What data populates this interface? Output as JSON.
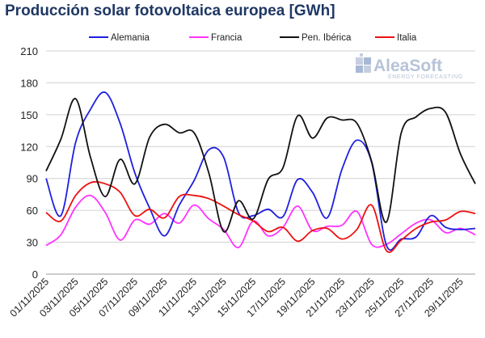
{
  "chart_data": {
    "type": "line",
    "title": "Producción solar fotovoltaica europea [GWh]",
    "ylim": [
      0,
      210
    ],
    "yticks": [
      0,
      30,
      60,
      90,
      120,
      150,
      180,
      210
    ],
    "grid": "horizontal",
    "legend_position": "top",
    "x": [
      "01/11/2025",
      "02/11/2025",
      "03/11/2025",
      "04/11/2025",
      "05/11/2025",
      "06/11/2025",
      "07/11/2025",
      "08/11/2025",
      "09/11/2025",
      "10/11/2025",
      "11/11/2025",
      "12/11/2025",
      "13/11/2025",
      "14/11/2025",
      "15/11/2025",
      "16/11/2025",
      "17/11/2025",
      "18/11/2025",
      "19/11/2025",
      "20/11/2025",
      "21/11/2025",
      "22/11/2025",
      "23/11/2025",
      "24/11/2025",
      "25/11/2025",
      "26/11/2025",
      "27/11/2025",
      "28/11/2025",
      "29/11/2025",
      "30/11/2025"
    ],
    "xtick_labels": [
      "01/11/2025",
      "03/11/2025",
      "05/11/2025",
      "07/11/2025",
      "09/11/2025",
      "11/11/2025",
      "13/11/2025",
      "15/11/2025",
      "17/11/2025",
      "19/11/2025",
      "21/11/2025",
      "23/11/2025",
      "25/11/2025",
      "27/11/2025",
      "29/11/2025"
    ],
    "series": [
      {
        "name": "Alemania",
        "color": "#1f1fe0",
        "values": [
          90,
          55,
          124,
          155,
          171,
          142,
          95,
          62,
          36,
          65,
          88,
          117,
          110,
          58,
          55,
          61,
          54,
          89,
          77,
          53,
          99,
          126,
          105,
          27,
          33,
          35,
          55,
          44,
          42,
          43
        ]
      },
      {
        "name": "Francia",
        "color": "#ff33ff",
        "values": [
          27,
          37,
          63,
          74,
          58,
          32,
          51,
          47,
          57,
          48,
          65,
          52,
          42,
          25,
          50,
          36,
          44,
          64,
          41,
          45,
          46,
          59,
          28,
          28,
          38,
          48,
          51,
          39,
          43,
          37
        ]
      },
      {
        "name": "Pen. Ibérica",
        "color": "#111111",
        "values": [
          97,
          127,
          165,
          110,
          73,
          108,
          85,
          129,
          141,
          133,
          133,
          95,
          40,
          69,
          52,
          89,
          100,
          149,
          128,
          147,
          145,
          142,
          106,
          49,
          133,
          148,
          156,
          152,
          113,
          85
        ]
      },
      {
        "name": "Italia",
        "color": "#ee1111",
        "values": [
          58,
          50,
          74,
          86,
          85,
          77,
          55,
          61,
          53,
          73,
          74,
          71,
          64,
          56,
          50,
          40,
          44,
          31,
          41,
          43,
          33,
          42,
          65,
          22,
          32,
          43,
          49,
          51,
          59,
          57
        ]
      }
    ]
  },
  "watermark": {
    "name": "AleaSoft",
    "subtitle": "ENERGY FORECASTING"
  }
}
